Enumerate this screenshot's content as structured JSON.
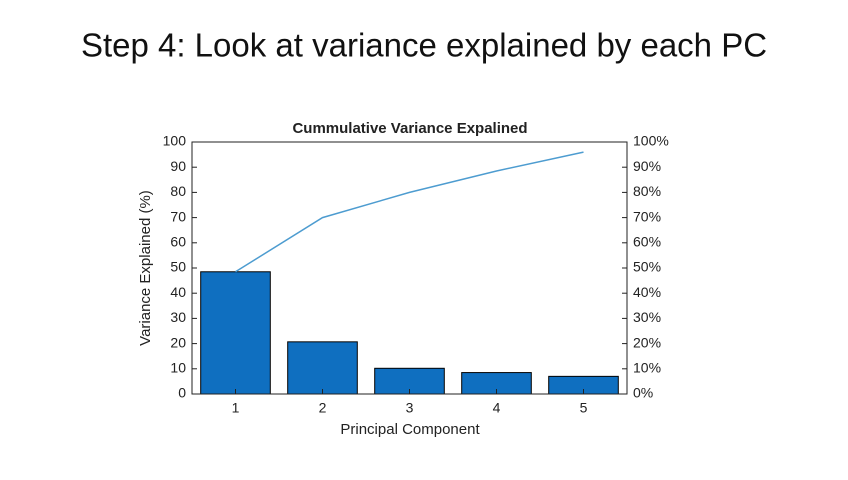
{
  "page": {
    "title": "Step 4: Look at variance explained by each PC"
  },
  "chart_data": {
    "type": "pareto",
    "title": "Cummulative Variance Expalined",
    "x_label": "Principal Component",
    "y_label": "Variance Explained (%)",
    "categories": [
      "1",
      "2",
      "3",
      "4",
      "5"
    ],
    "series": [
      {
        "name": "Variance Explained",
        "type": "bar",
        "color": "#0f6fc0",
        "values": [
          48.5,
          20.7,
          10.2,
          8.5,
          7.0
        ]
      },
      {
        "name": "Cumulative",
        "type": "line",
        "axis": "y2",
        "color": "#4d9cd0",
        "values": [
          48.5,
          70,
          80,
          88.5,
          96
        ]
      }
    ],
    "ylim": [
      0,
      100
    ],
    "yticks": [
      0,
      10,
      20,
      30,
      40,
      50,
      60,
      70,
      80,
      90,
      100
    ],
    "y2lim": [
      0,
      100
    ],
    "y2ticks": [
      {
        "value": 0,
        "label": "0%"
      },
      {
        "value": 10,
        "label": "10%"
      },
      {
        "value": 20,
        "label": "20%"
      },
      {
        "value": 30,
        "label": "30%"
      },
      {
        "value": 40,
        "label": "40%"
      },
      {
        "value": 50,
        "label": "50%"
      },
      {
        "value": 60,
        "label": "60%"
      },
      {
        "value": 70,
        "label": "70%"
      },
      {
        "value": 80,
        "label": "80%"
      },
      {
        "value": 90,
        "label": "90%"
      },
      {
        "value": 100,
        "label": "100%"
      }
    ]
  }
}
